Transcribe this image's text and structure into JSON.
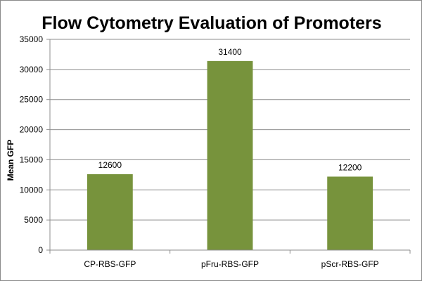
{
  "chart_data": {
    "type": "bar",
    "title": "Flow Cytometry Evaluation of Promoters",
    "xlabel": "",
    "ylabel": "Mean GFP",
    "categories": [
      "CP-RBS-GFP",
      "pFru-RBS-GFP",
      "pScr-RBS-GFP"
    ],
    "values": [
      12600,
      31400,
      12200
    ],
    "data_labels": [
      "12600",
      "31400",
      "12200"
    ],
    "ylim": [
      0,
      35000
    ],
    "yticks": [
      0,
      5000,
      10000,
      15000,
      20000,
      25000,
      30000,
      35000
    ],
    "ytick_labels": [
      "0",
      "5000",
      "10000",
      "15000",
      "20000",
      "25000",
      "30000",
      "35000"
    ],
    "grid": true,
    "legend": "none",
    "bar_color": "#77933c",
    "grid_color": "#8c8c8c"
  }
}
